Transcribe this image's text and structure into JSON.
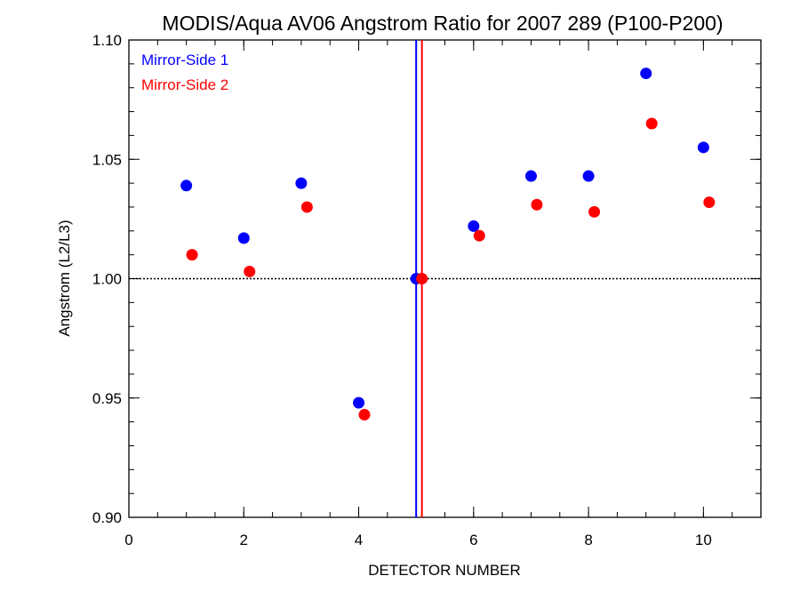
{
  "chart_data": {
    "type": "scatter",
    "title": "MODIS/Aqua AV06 Angstrom Ratio for 2007 289 (P100-P200)",
    "xlabel": "DETECTOR NUMBER",
    "ylabel": "Angstrom (L2/L3)",
    "xlim": [
      0,
      11
    ],
    "ylim": [
      0.9,
      1.1
    ],
    "xticks": [
      0,
      2,
      4,
      6,
      8,
      10
    ],
    "xtick_labels": [
      "0",
      "2",
      "4",
      "6",
      "8",
      "10"
    ],
    "yticks": [
      0.9,
      0.95,
      1.0,
      1.05,
      1.1
    ],
    "ytick_labels": [
      "0.90",
      "0.95",
      "1.00",
      "1.05",
      "1.10"
    ],
    "reference_line_y": 1.0,
    "grid": false,
    "legend_position": "top-left",
    "series": [
      {
        "name": "Mirror-Side 1",
        "color": "#0000ff",
        "x": [
          1,
          2,
          3,
          4,
          5,
          6,
          7,
          8,
          9,
          10
        ],
        "y": [
          1.039,
          1.017,
          1.04,
          0.948,
          1.0,
          1.022,
          1.043,
          1.043,
          1.086,
          1.055
        ],
        "vline_x": 5.0
      },
      {
        "name": "Mirror-Side 2",
        "color": "#ff0000",
        "x": [
          1.1,
          2.1,
          3.1,
          4.1,
          5.1,
          6.1,
          7.1,
          8.1,
          9.1,
          10.1
        ],
        "y": [
          1.01,
          1.003,
          1.03,
          0.943,
          1.0,
          1.018,
          1.031,
          1.028,
          1.065,
          1.032
        ],
        "vline_x": 5.1
      }
    ]
  }
}
